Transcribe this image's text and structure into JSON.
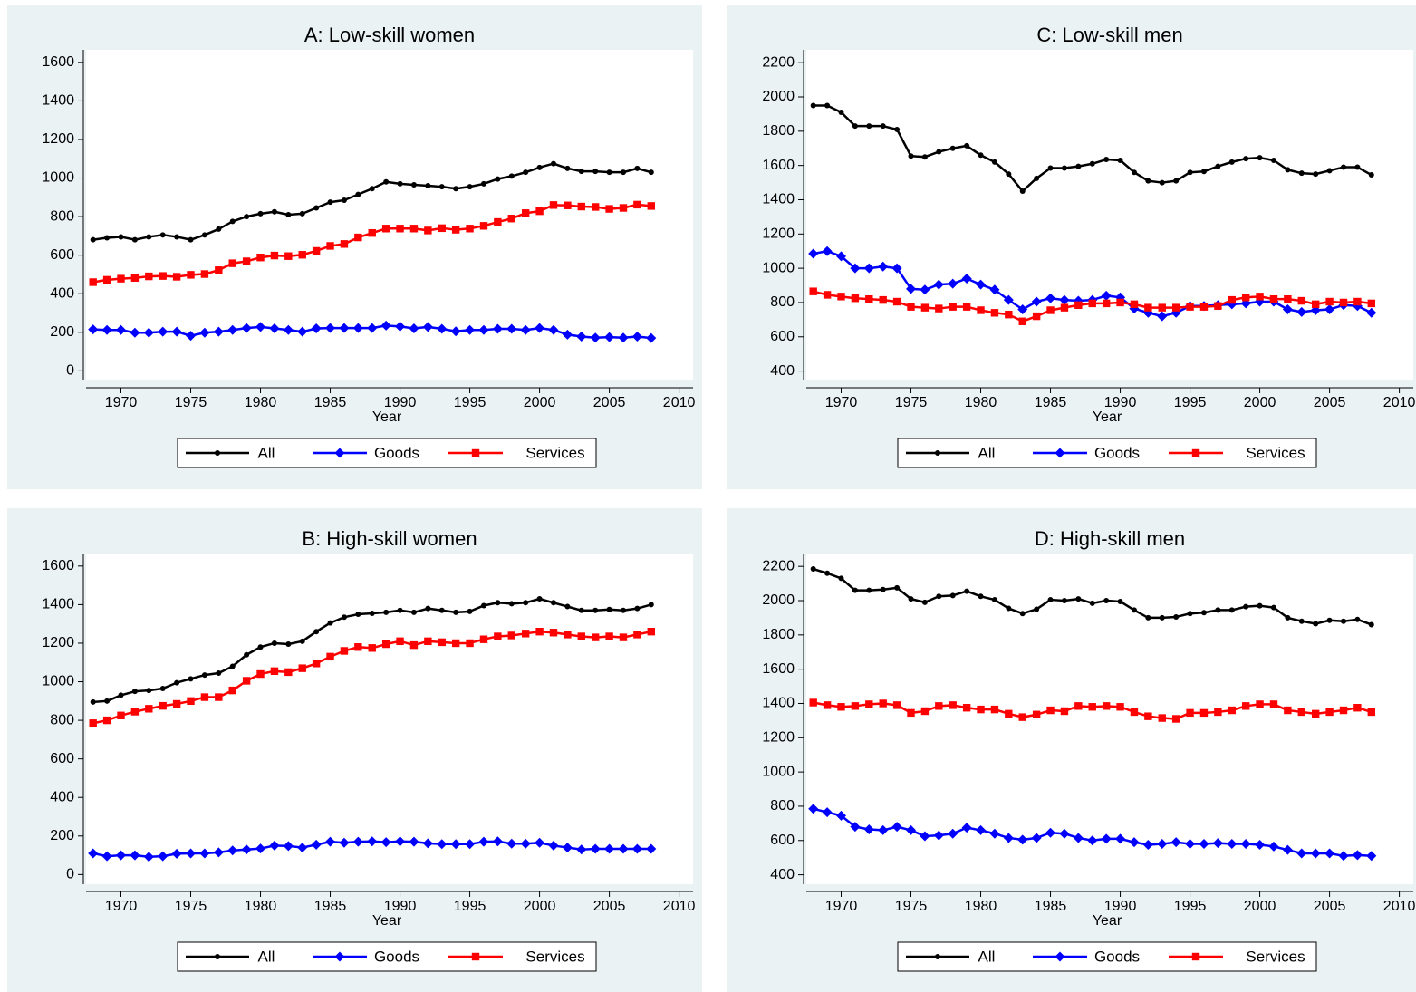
{
  "chart_data": [
    {
      "type": "line",
      "title": "A: Low-skill women",
      "xlabel": "Year",
      "x": [
        1968,
        1969,
        1970,
        1971,
        1972,
        1973,
        1974,
        1975,
        1976,
        1977,
        1978,
        1979,
        1980,
        1981,
        1982,
        1983,
        1984,
        1985,
        1986,
        1987,
        1988,
        1989,
        1990,
        1991,
        1992,
        1993,
        1994,
        1995,
        1996,
        1997,
        1998,
        1999,
        2000,
        2001,
        2002,
        2003,
        2004,
        2005,
        2006,
        2007,
        2008
      ],
      "xlim": [
        1967.5,
        2011
      ],
      "xticks": [
        1970,
        1975,
        1980,
        1985,
        1990,
        1995,
        2000,
        2005,
        2010
      ],
      "ylim": [
        -50,
        1665
      ],
      "yticks": [
        0,
        200,
        400,
        600,
        800,
        1000,
        1200,
        1400,
        1600
      ],
      "legend": "bottom",
      "series": [
        {
          "name": "All",
          "color": "#000000",
          "marker": "circle",
          "values": [
            680,
            690,
            695,
            680,
            695,
            705,
            695,
            680,
            705,
            735,
            775,
            800,
            815,
            825,
            810,
            815,
            845,
            875,
            885,
            915,
            945,
            980,
            970,
            965,
            960,
            955,
            945,
            955,
            970,
            995,
            1010,
            1030,
            1055,
            1075,
            1050,
            1035,
            1035,
            1030,
            1030,
            1050,
            1030
          ]
        },
        {
          "name": "Goods",
          "color": "#0000ff",
          "marker": "diamond",
          "values": [
            215,
            212,
            212,
            198,
            198,
            203,
            203,
            182,
            198,
            203,
            212,
            222,
            228,
            220,
            212,
            203,
            220,
            222,
            222,
            222,
            222,
            235,
            230,
            220,
            228,
            218,
            205,
            212,
            212,
            218,
            218,
            212,
            222,
            212,
            188,
            178,
            172,
            175,
            172,
            178,
            170
          ]
        },
        {
          "name": "Services",
          "color": "#ff0000",
          "marker": "square",
          "values": [
            460,
            472,
            478,
            482,
            490,
            492,
            488,
            498,
            502,
            522,
            558,
            568,
            588,
            598,
            595,
            602,
            622,
            648,
            658,
            692,
            715,
            738,
            738,
            738,
            728,
            740,
            732,
            738,
            752,
            772,
            790,
            818,
            828,
            860,
            858,
            852,
            850,
            840,
            845,
            862,
            855
          ]
        }
      ]
    },
    {
      "type": "line",
      "title": "C: Low-skill men",
      "xlabel": "Year",
      "x": [
        1968,
        1969,
        1970,
        1971,
        1972,
        1973,
        1974,
        1975,
        1976,
        1977,
        1978,
        1979,
        1980,
        1981,
        1982,
        1983,
        1984,
        1985,
        1986,
        1987,
        1988,
        1989,
        1990,
        1991,
        1992,
        1993,
        1994,
        1995,
        1996,
        1997,
        1998,
        1999,
        2000,
        2001,
        2002,
        2003,
        2004,
        2005,
        2006,
        2007,
        2008
      ],
      "xlim": [
        1967.5,
        2011
      ],
      "xticks": [
        1970,
        1975,
        1980,
        1985,
        1990,
        1995,
        2000,
        2005,
        2010
      ],
      "ylim": [
        345,
        2275
      ],
      "yticks": [
        400,
        600,
        800,
        1000,
        1200,
        1400,
        1600,
        1800,
        2000,
        2200
      ],
      "legend": "bottom",
      "series": [
        {
          "name": "All",
          "color": "#000000",
          "marker": "circle",
          "values": [
            1950,
            1950,
            1910,
            1830,
            1830,
            1830,
            1810,
            1655,
            1650,
            1680,
            1700,
            1715,
            1660,
            1620,
            1550,
            1450,
            1525,
            1585,
            1585,
            1595,
            1610,
            1635,
            1630,
            1560,
            1510,
            1500,
            1510,
            1560,
            1565,
            1595,
            1620,
            1640,
            1645,
            1630,
            1575,
            1555,
            1550,
            1570,
            1590,
            1590,
            1545
          ]
        },
        {
          "name": "Goods",
          "color": "#0000ff",
          "marker": "diamond",
          "values": [
            1085,
            1100,
            1070,
            1000,
            1000,
            1010,
            1000,
            880,
            875,
            905,
            910,
            940,
            905,
            875,
            815,
            760,
            805,
            825,
            815,
            810,
            815,
            840,
            830,
            765,
            740,
            720,
            740,
            780,
            780,
            785,
            790,
            795,
            805,
            805,
            760,
            745,
            755,
            760,
            785,
            780,
            740
          ]
        },
        {
          "name": "Services",
          "color": "#ff0000",
          "marker": "square",
          "values": [
            865,
            845,
            835,
            825,
            820,
            815,
            805,
            775,
            770,
            765,
            775,
            775,
            755,
            740,
            730,
            690,
            720,
            755,
            770,
            785,
            795,
            795,
            800,
            790,
            770,
            770,
            770,
            775,
            775,
            780,
            815,
            830,
            835,
            820,
            820,
            810,
            790,
            805,
            800,
            805,
            795
          ]
        }
      ]
    },
    {
      "type": "line",
      "title": "B: High-skill women",
      "xlabel": "Year",
      "x": [
        1968,
        1969,
        1970,
        1971,
        1972,
        1973,
        1974,
        1975,
        1976,
        1977,
        1978,
        1979,
        1980,
        1981,
        1982,
        1983,
        1984,
        1985,
        1986,
        1987,
        1988,
        1989,
        1990,
        1991,
        1992,
        1993,
        1994,
        1995,
        1996,
        1997,
        1998,
        1999,
        2000,
        2001,
        2002,
        2003,
        2004,
        2005,
        2006,
        2007,
        2008
      ],
      "xlim": [
        1967.5,
        2011
      ],
      "xticks": [
        1970,
        1975,
        1980,
        1985,
        1990,
        1995,
        2000,
        2005,
        2010
      ],
      "ylim": [
        -50,
        1665
      ],
      "yticks": [
        0,
        200,
        400,
        600,
        800,
        1000,
        1200,
        1400,
        1600
      ],
      "legend": "bottom",
      "series": [
        {
          "name": "All",
          "color": "#000000",
          "marker": "circle",
          "values": [
            895,
            900,
            930,
            950,
            955,
            965,
            995,
            1015,
            1035,
            1045,
            1080,
            1140,
            1180,
            1200,
            1195,
            1210,
            1260,
            1305,
            1335,
            1350,
            1355,
            1360,
            1370,
            1360,
            1380,
            1370,
            1360,
            1365,
            1395,
            1410,
            1405,
            1410,
            1430,
            1410,
            1390,
            1370,
            1370,
            1375,
            1370,
            1380,
            1400
          ]
        },
        {
          "name": "Goods",
          "color": "#0000ff",
          "marker": "diamond",
          "values": [
            110,
            95,
            100,
            100,
            92,
            95,
            108,
            110,
            110,
            115,
            125,
            130,
            135,
            150,
            148,
            140,
            155,
            170,
            165,
            170,
            172,
            168,
            172,
            170,
            162,
            158,
            158,
            158,
            170,
            172,
            160,
            160,
            165,
            150,
            140,
            130,
            133,
            133,
            133,
            133,
            133
          ]
        },
        {
          "name": "Services",
          "color": "#ff0000",
          "marker": "square",
          "values": [
            785,
            800,
            825,
            845,
            860,
            875,
            885,
            900,
            920,
            920,
            955,
            1005,
            1040,
            1055,
            1050,
            1070,
            1095,
            1130,
            1160,
            1180,
            1175,
            1195,
            1210,
            1190,
            1210,
            1205,
            1200,
            1200,
            1220,
            1235,
            1240,
            1250,
            1260,
            1255,
            1245,
            1235,
            1230,
            1235,
            1230,
            1245,
            1260
          ]
        }
      ]
    },
    {
      "type": "line",
      "title": "D: High-skill men",
      "xlabel": "Year",
      "x": [
        1968,
        1969,
        1970,
        1971,
        1972,
        1973,
        1974,
        1975,
        1976,
        1977,
        1978,
        1979,
        1980,
        1981,
        1982,
        1983,
        1984,
        1985,
        1986,
        1987,
        1988,
        1989,
        1990,
        1991,
        1992,
        1993,
        1994,
        1995,
        1996,
        1997,
        1998,
        1999,
        2000,
        2001,
        2002,
        2003,
        2004,
        2005,
        2006,
        2007,
        2008
      ],
      "xlim": [
        1967.5,
        2011
      ],
      "xticks": [
        1970,
        1975,
        1980,
        1985,
        1990,
        1995,
        2000,
        2005,
        2010
      ],
      "ylim": [
        345,
        2275
      ],
      "yticks": [
        400,
        600,
        800,
        1000,
        1200,
        1400,
        1600,
        1800,
        2000,
        2200
      ],
      "legend": "bottom",
      "series": [
        {
          "name": "All",
          "color": "#000000",
          "marker": "circle",
          "values": [
            2185,
            2160,
            2130,
            2060,
            2060,
            2065,
            2075,
            2010,
            1990,
            2025,
            2030,
            2055,
            2025,
            2005,
            1955,
            1925,
            1950,
            2005,
            2000,
            2010,
            1985,
            2000,
            1995,
            1945,
            1900,
            1900,
            1905,
            1925,
            1930,
            1945,
            1945,
            1965,
            1970,
            1960,
            1900,
            1880,
            1865,
            1885,
            1880,
            1890,
            1860
          ]
        },
        {
          "name": "Goods",
          "color": "#0000ff",
          "marker": "diamond",
          "values": [
            785,
            765,
            745,
            680,
            665,
            660,
            680,
            660,
            625,
            630,
            640,
            675,
            660,
            640,
            615,
            605,
            615,
            645,
            640,
            615,
            600,
            610,
            610,
            590,
            575,
            580,
            590,
            580,
            580,
            585,
            580,
            580,
            575,
            565,
            545,
            525,
            525,
            525,
            510,
            515,
            510
          ]
        },
        {
          "name": "Services",
          "color": "#ff0000",
          "marker": "square",
          "values": [
            1405,
            1390,
            1380,
            1385,
            1395,
            1400,
            1390,
            1345,
            1355,
            1385,
            1390,
            1375,
            1365,
            1365,
            1340,
            1320,
            1335,
            1360,
            1355,
            1385,
            1380,
            1385,
            1380,
            1350,
            1325,
            1315,
            1310,
            1345,
            1345,
            1350,
            1360,
            1385,
            1395,
            1395,
            1360,
            1350,
            1340,
            1350,
            1360,
            1375,
            1350
          ]
        }
      ]
    }
  ]
}
